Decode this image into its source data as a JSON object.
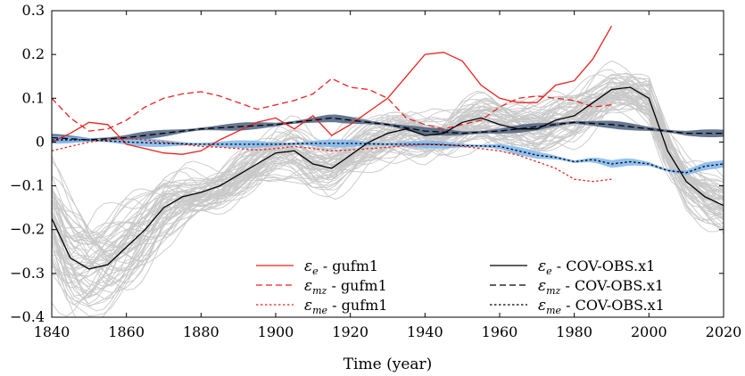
{
  "chart_data": {
    "type": "line",
    "title": "",
    "xlabel": "Time (year)",
    "ylabel": "",
    "xlim": [
      1840,
      2020
    ],
    "ylim": [
      -0.4,
      0.3
    ],
    "xticks": [
      1840,
      1860,
      1880,
      1900,
      1920,
      1940,
      1960,
      1980,
      2000,
      2020
    ],
    "yticks": [
      -0.4,
      -0.3,
      -0.2,
      -0.1,
      0,
      0.1,
      0.2,
      0.3
    ],
    "ytick_labels": [
      "−0.4",
      "−0.3",
      "−0.2",
      "−0.1",
      "0",
      "0.1",
      "0.2",
      "0.3"
    ],
    "ensemble_note": "grey lines: ensemble members of COV-OBS.x1 eps_e; shaded bands: ensemble spread",
    "legend": [
      {
        "symbol": "ε",
        "sub": "e",
        "text": " - gufm1",
        "color": "#e8231f",
        "dash": "solid"
      },
      {
        "symbol": "ε",
        "sub": "mz",
        "text": " - gufm1",
        "color": "#e8231f",
        "dash": "dashed"
      },
      {
        "symbol": "ε",
        "sub": "me",
        "text": " - gufm1",
        "color": "#e8231f",
        "dash": "dotted"
      },
      {
        "symbol": "ε",
        "sub": "e",
        "text": " - COV-OBS.x1",
        "color": "#000000",
        "dash": "solid"
      },
      {
        "symbol": "ε",
        "sub": "mz",
        "text": " - COV-OBS.x1",
        "color": "#000000",
        "dash": "dashed"
      },
      {
        "symbol": "ε",
        "sub": "me",
        "text": " - COV-OBS.x1",
        "color": "#000000",
        "dash": "dotted"
      }
    ],
    "series": [
      {
        "name": "eps_e - gufm1",
        "color": "#e8231f",
        "dash": "solid",
        "x": [
          1840,
          1845,
          1850,
          1855,
          1860,
          1865,
          1870,
          1875,
          1880,
          1885,
          1890,
          1895,
          1900,
          1905,
          1910,
          1915,
          1920,
          1925,
          1930,
          1935,
          1940,
          1945,
          1950,
          1955,
          1960,
          1965,
          1970,
          1975,
          1980,
          1985,
          1990
        ],
        "y": [
          0.0,
          0.02,
          0.045,
          0.04,
          -0.005,
          -0.015,
          -0.025,
          -0.028,
          -0.02,
          0.005,
          0.025,
          0.045,
          0.055,
          0.03,
          0.06,
          0.015,
          0.04,
          0.07,
          0.1,
          0.15,
          0.2,
          0.205,
          0.185,
          0.13,
          0.1,
          0.09,
          0.09,
          0.13,
          0.14,
          0.19,
          0.265
        ]
      },
      {
        "name": "eps_mz - gufm1",
        "color": "#e8231f",
        "dash": "dashed",
        "x": [
          1840,
          1845,
          1850,
          1855,
          1860,
          1865,
          1870,
          1875,
          1880,
          1885,
          1890,
          1895,
          1900,
          1905,
          1910,
          1915,
          1920,
          1925,
          1930,
          1935,
          1940,
          1945,
          1950,
          1955,
          1960,
          1965,
          1970,
          1975,
          1980,
          1985,
          1990
        ],
        "y": [
          0.1,
          0.055,
          0.025,
          0.03,
          0.05,
          0.08,
          0.1,
          0.11,
          0.115,
          0.105,
          0.09,
          0.075,
          0.085,
          0.095,
          0.11,
          0.145,
          0.125,
          0.12,
          0.1,
          0.055,
          0.04,
          0.03,
          0.04,
          0.05,
          0.08,
          0.1,
          0.105,
          0.1,
          0.095,
          0.08,
          0.085
        ]
      },
      {
        "name": "eps_me - gufm1",
        "color": "#e8231f",
        "dash": "dotted",
        "x": [
          1840,
          1845,
          1850,
          1855,
          1860,
          1865,
          1870,
          1875,
          1880,
          1885,
          1890,
          1895,
          1900,
          1905,
          1910,
          1915,
          1920,
          1925,
          1930,
          1935,
          1940,
          1945,
          1950,
          1955,
          1960,
          1965,
          1970,
          1975,
          1980,
          1985,
          1990
        ],
        "y": [
          -0.02,
          -0.01,
          0.0,
          0.005,
          0.008,
          0.005,
          0.0,
          -0.005,
          -0.01,
          -0.012,
          -0.015,
          -0.018,
          -0.015,
          -0.01,
          -0.015,
          -0.02,
          -0.018,
          -0.015,
          -0.012,
          -0.008,
          -0.005,
          -0.005,
          -0.01,
          -0.015,
          -0.02,
          -0.03,
          -0.045,
          -0.06,
          -0.085,
          -0.09,
          -0.085
        ]
      },
      {
        "name": "eps_e - COV-OBS.x1",
        "color": "#000000",
        "dash": "solid",
        "x": [
          1840,
          1845,
          1850,
          1855,
          1860,
          1865,
          1870,
          1875,
          1880,
          1885,
          1890,
          1895,
          1900,
          1905,
          1910,
          1915,
          1920,
          1925,
          1930,
          1935,
          1940,
          1945,
          1950,
          1955,
          1960,
          1965,
          1970,
          1975,
          1980,
          1985,
          1990,
          1995,
          2000,
          2005,
          2010,
          2015,
          2020
        ],
        "y": [
          -0.175,
          -0.265,
          -0.29,
          -0.28,
          -0.24,
          -0.2,
          -0.15,
          -0.125,
          -0.115,
          -0.1,
          -0.075,
          -0.05,
          -0.025,
          -0.02,
          -0.05,
          -0.06,
          -0.03,
          0.0,
          0.02,
          0.03,
          0.015,
          0.02,
          0.045,
          0.055,
          0.04,
          0.03,
          0.03,
          0.05,
          0.06,
          0.09,
          0.12,
          0.125,
          0.1,
          -0.02,
          -0.09,
          -0.125,
          -0.145
        ]
      },
      {
        "name": "eps_mz - COV-OBS.x1",
        "color": "#000000",
        "dash": "dashed",
        "band_color": "#4a5f7e",
        "x": [
          1840,
          1850,
          1860,
          1870,
          1880,
          1890,
          1900,
          1910,
          1915,
          1920,
          1930,
          1940,
          1950,
          1960,
          1970,
          1980,
          1990,
          2000,
          2010,
          2020
        ],
        "y": [
          0.01,
          0.005,
          0.01,
          0.02,
          0.03,
          0.035,
          0.04,
          0.05,
          0.055,
          0.05,
          0.04,
          0.025,
          0.02,
          0.025,
          0.035,
          0.045,
          0.04,
          0.03,
          0.02,
          0.02
        ]
      },
      {
        "name": "eps_me - COV-OBS.x1",
        "color": "#000000",
        "dash": "dotted",
        "band_color": "#7fb6ef",
        "x": [
          1840,
          1850,
          1860,
          1870,
          1880,
          1890,
          1900,
          1910,
          1920,
          1930,
          1940,
          1950,
          1960,
          1965,
          1970,
          1975,
          1980,
          1985,
          1990,
          1995,
          2000,
          2005,
          2010,
          2015,
          2020
        ],
        "y": [
          0.005,
          0.005,
          0.0,
          -0.003,
          -0.005,
          -0.005,
          -0.005,
          -0.003,
          -0.003,
          -0.005,
          -0.005,
          -0.008,
          -0.01,
          -0.02,
          -0.03,
          -0.035,
          -0.045,
          -0.04,
          -0.05,
          -0.045,
          -0.05,
          -0.065,
          -0.07,
          -0.055,
          -0.05
        ]
      }
    ]
  }
}
